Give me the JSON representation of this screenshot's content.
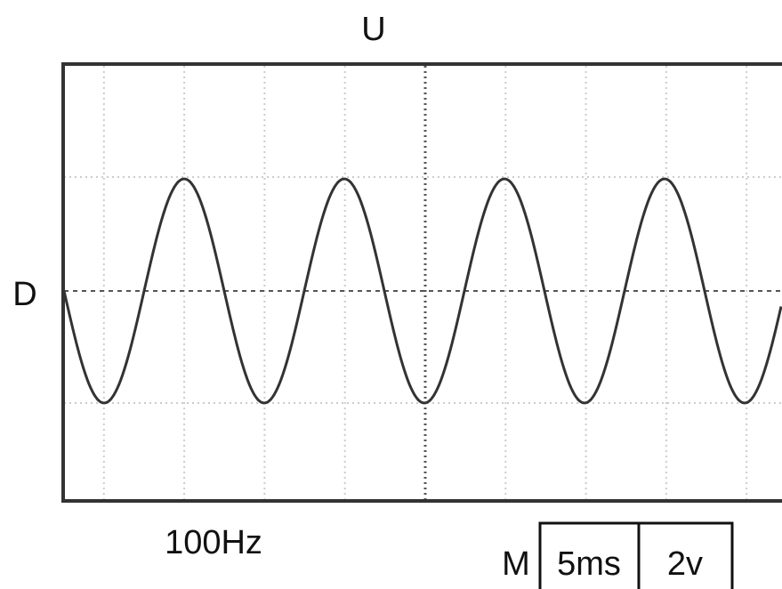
{
  "labels": {
    "top": "U",
    "left": "D",
    "frequency": "100Hz",
    "mode": "M",
    "time_per_div": "5ms",
    "volts_per_div": "2v"
  }
}
